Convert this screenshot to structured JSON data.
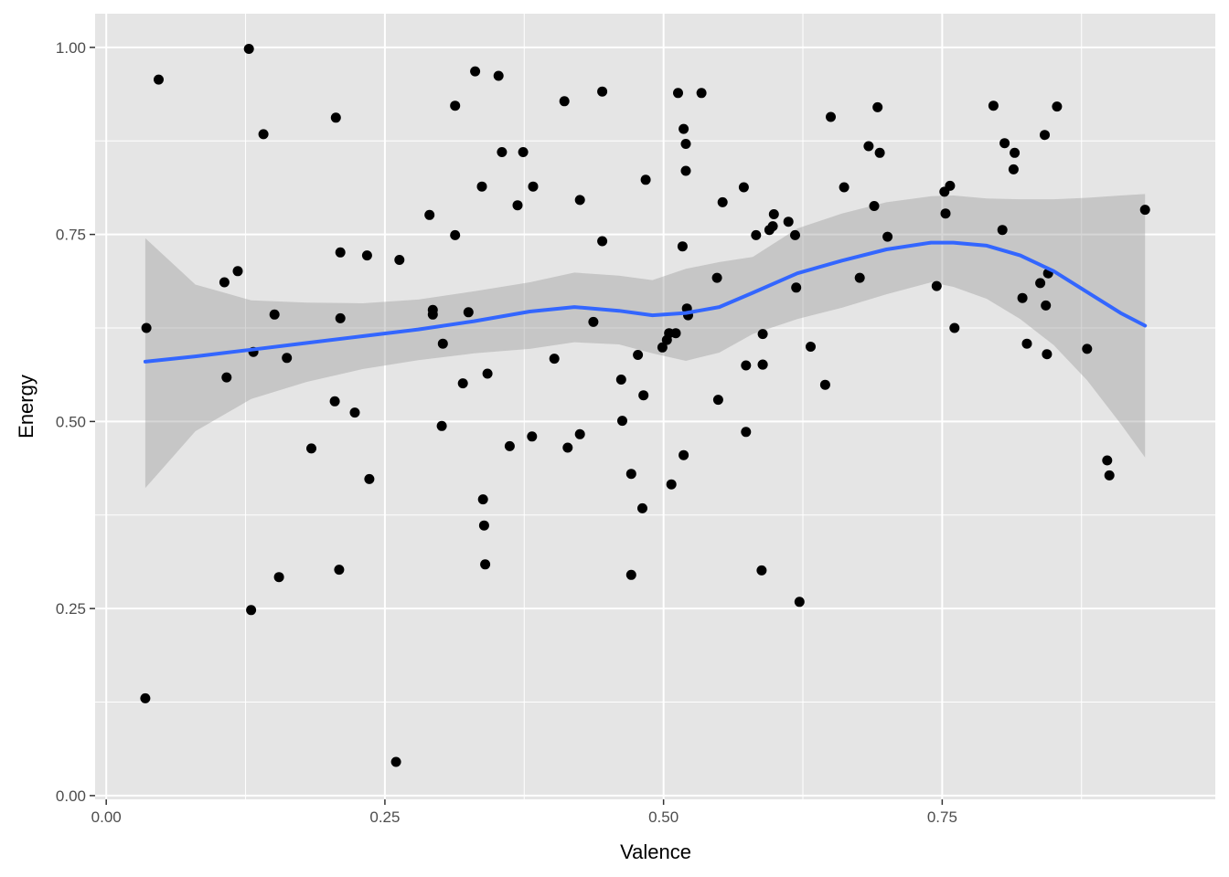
{
  "chart_data": {
    "type": "scatter",
    "title": "",
    "xlabel": "Valence",
    "ylabel": "Energy",
    "xlim": [
      -0.01,
      0.995
    ],
    "ylim": [
      -0.005,
      1.045
    ],
    "x_ticks": [
      {
        "value": 0.0,
        "label": "0.00"
      },
      {
        "value": 0.25,
        "label": "0.25"
      },
      {
        "value": 0.5,
        "label": "0.50"
      },
      {
        "value": 0.75,
        "label": "0.75"
      }
    ],
    "y_ticks": [
      {
        "value": 0.0,
        "label": "0.00"
      },
      {
        "value": 0.25,
        "label": "0.25"
      },
      {
        "value": 0.5,
        "label": "0.50"
      },
      {
        "value": 0.75,
        "label": "0.75"
      },
      {
        "value": 1.0,
        "label": "1.00"
      }
    ],
    "grid": true,
    "legend": "none",
    "colors": {
      "panel_background": "#e5e5e5",
      "grid": "#ffffff",
      "points": "#000000",
      "smooth_line": "#3366ff",
      "confidence_band": "#999999"
    },
    "series": [
      {
        "type": "scatter",
        "x": [
          0.035,
          0.047,
          0.036,
          0.106,
          0.108,
          0.118,
          0.13,
          0.128,
          0.132,
          0.141,
          0.151,
          0.155,
          0.162,
          0.184,
          0.205,
          0.206,
          0.209,
          0.21,
          0.21,
          0.223,
          0.234,
          0.236,
          0.26,
          0.263,
          0.29,
          0.293,
          0.293,
          0.301,
          0.302,
          0.313,
          0.313,
          0.32,
          0.325,
          0.331,
          0.337,
          0.338,
          0.339,
          0.34,
          0.342,
          0.352,
          0.355,
          0.362,
          0.369,
          0.374,
          0.382,
          0.383,
          0.402,
          0.411,
          0.414,
          0.425,
          0.425,
          0.437,
          0.445,
          0.445,
          0.462,
          0.463,
          0.471,
          0.471,
          0.477,
          0.481,
          0.482,
          0.484,
          0.499,
          0.503,
          0.505,
          0.507,
          0.511,
          0.513,
          0.517,
          0.518,
          0.518,
          0.52,
          0.52,
          0.521,
          0.522,
          0.534,
          0.548,
          0.549,
          0.553,
          0.572,
          0.574,
          0.574,
          0.583,
          0.588,
          0.589,
          0.589,
          0.589,
          0.595,
          0.598,
          0.599,
          0.612,
          0.618,
          0.619,
          0.622,
          0.632,
          0.645,
          0.65,
          0.662,
          0.676,
          0.684,
          0.689,
          0.692,
          0.694,
          0.701,
          0.745,
          0.752,
          0.753,
          0.757,
          0.761,
          0.796,
          0.804,
          0.806,
          0.814,
          0.815,
          0.822,
          0.826,
          0.838,
          0.842,
          0.843,
          0.844,
          0.845,
          0.853,
          0.88,
          0.898,
          0.9,
          0.932
        ],
        "y": [
          0.13,
          0.957,
          0.625,
          0.686,
          0.559,
          0.701,
          0.248,
          0.998,
          0.593,
          0.884,
          0.643,
          0.292,
          0.585,
          0.464,
          0.527,
          0.906,
          0.302,
          0.638,
          0.726,
          0.512,
          0.722,
          0.423,
          0.045,
          0.716,
          0.776,
          0.643,
          0.649,
          0.494,
          0.604,
          0.922,
          0.749,
          0.551,
          0.646,
          0.968,
          0.814,
          0.396,
          0.361,
          0.309,
          0.564,
          0.962,
          0.86,
          0.467,
          0.789,
          0.86,
          0.48,
          0.814,
          0.584,
          0.928,
          0.465,
          0.483,
          0.796,
          0.633,
          0.941,
          0.741,
          0.556,
          0.501,
          0.43,
          0.295,
          0.589,
          0.384,
          0.535,
          0.823,
          0.599,
          0.609,
          0.618,
          0.416,
          0.618,
          0.939,
          0.734,
          0.455,
          0.891,
          0.871,
          0.835,
          0.651,
          0.642,
          0.939,
          0.692,
          0.529,
          0.793,
          0.813,
          0.486,
          0.575,
          0.749,
          0.301,
          0.617,
          0.576,
          0.576,
          0.756,
          0.761,
          0.777,
          0.767,
          0.749,
          0.679,
          0.259,
          0.6,
          0.549,
          0.907,
          0.813,
          0.692,
          0.868,
          0.788,
          0.92,
          0.859,
          0.747,
          0.681,
          0.807,
          0.778,
          0.815,
          0.625,
          0.922,
          0.756,
          0.872,
          0.837,
          0.859,
          0.665,
          0.604,
          0.685,
          0.883,
          0.655,
          0.59,
          0.698,
          0.921,
          0.597,
          0.448,
          0.428,
          0.783
        ]
      },
      {
        "type": "smooth",
        "x": [
          0.035,
          0.08,
          0.13,
          0.18,
          0.23,
          0.28,
          0.33,
          0.38,
          0.42,
          0.46,
          0.49,
          0.52,
          0.55,
          0.58,
          0.62,
          0.66,
          0.7,
          0.74,
          0.76,
          0.79,
          0.82,
          0.85,
          0.88,
          0.91,
          0.932
        ],
        "y": [
          0.58,
          0.587,
          0.596,
          0.605,
          0.614,
          0.623,
          0.634,
          0.647,
          0.653,
          0.648,
          0.642,
          0.645,
          0.653,
          0.672,
          0.698,
          0.715,
          0.73,
          0.739,
          0.739,
          0.735,
          0.722,
          0.701,
          0.673,
          0.645,
          0.628
        ],
        "lower": [
          0.411,
          0.487,
          0.53,
          0.553,
          0.57,
          0.582,
          0.591,
          0.597,
          0.606,
          0.603,
          0.591,
          0.581,
          0.592,
          0.617,
          0.637,
          0.652,
          0.67,
          0.686,
          0.68,
          0.664,
          0.637,
          0.602,
          0.555,
          0.497,
          0.452
        ],
        "upper": [
          0.745,
          0.683,
          0.662,
          0.659,
          0.658,
          0.663,
          0.674,
          0.686,
          0.699,
          0.695,
          0.689,
          0.704,
          0.713,
          0.72,
          0.758,
          0.778,
          0.793,
          0.801,
          0.802,
          0.798,
          0.797,
          0.797,
          0.799,
          0.802,
          0.804
        ]
      }
    ]
  }
}
